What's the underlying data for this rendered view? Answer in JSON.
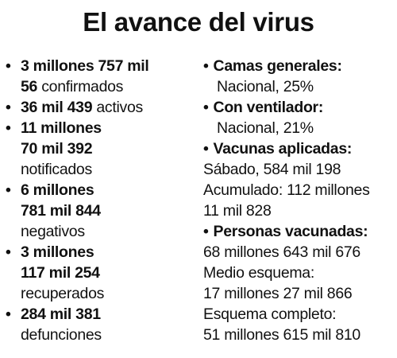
{
  "title": "El avance del virus",
  "left": {
    "confirmados": {
      "bold1": "3 millones 757 mil",
      "bold2": "56",
      "label": "confirmados"
    },
    "activos": {
      "bold": "36 mil 439",
      "label": "activos"
    },
    "notificados": {
      "bold1": "11 millones",
      "bold2": "70 mil 392",
      "label": "notificados"
    },
    "negativos": {
      "bold1": "6 millones",
      "bold2": "781 mil 844",
      "label": "negativos"
    },
    "recuperados": {
      "bold1": "3 millones",
      "bold2": "117 mil 254",
      "label": "recuperados"
    },
    "defunciones": {
      "bold": "284 mil 381",
      "label": "defunciones"
    }
  },
  "right": {
    "camas": {
      "heading": "Camas generales:",
      "value": "Nacional, 25%"
    },
    "ventilador": {
      "heading": "Con ventilador:",
      "value": "Nacional, 21%"
    },
    "vacunas": {
      "heading": "Vacunas aplicadas:",
      "line1": "Sábado, 584 mil 198",
      "line2": "Acumulado: 112 millones",
      "line3": "11 mil 828"
    },
    "personas": {
      "heading": "Personas vacunadas:",
      "line1": "68 millones 643 mil 676",
      "line2": "Medio esquema:",
      "line3": "17 millones 27 mil 866",
      "line4": "Esquema completo:",
      "line5": "51 millones 615 mil 810"
    }
  },
  "bullet_char": "•"
}
